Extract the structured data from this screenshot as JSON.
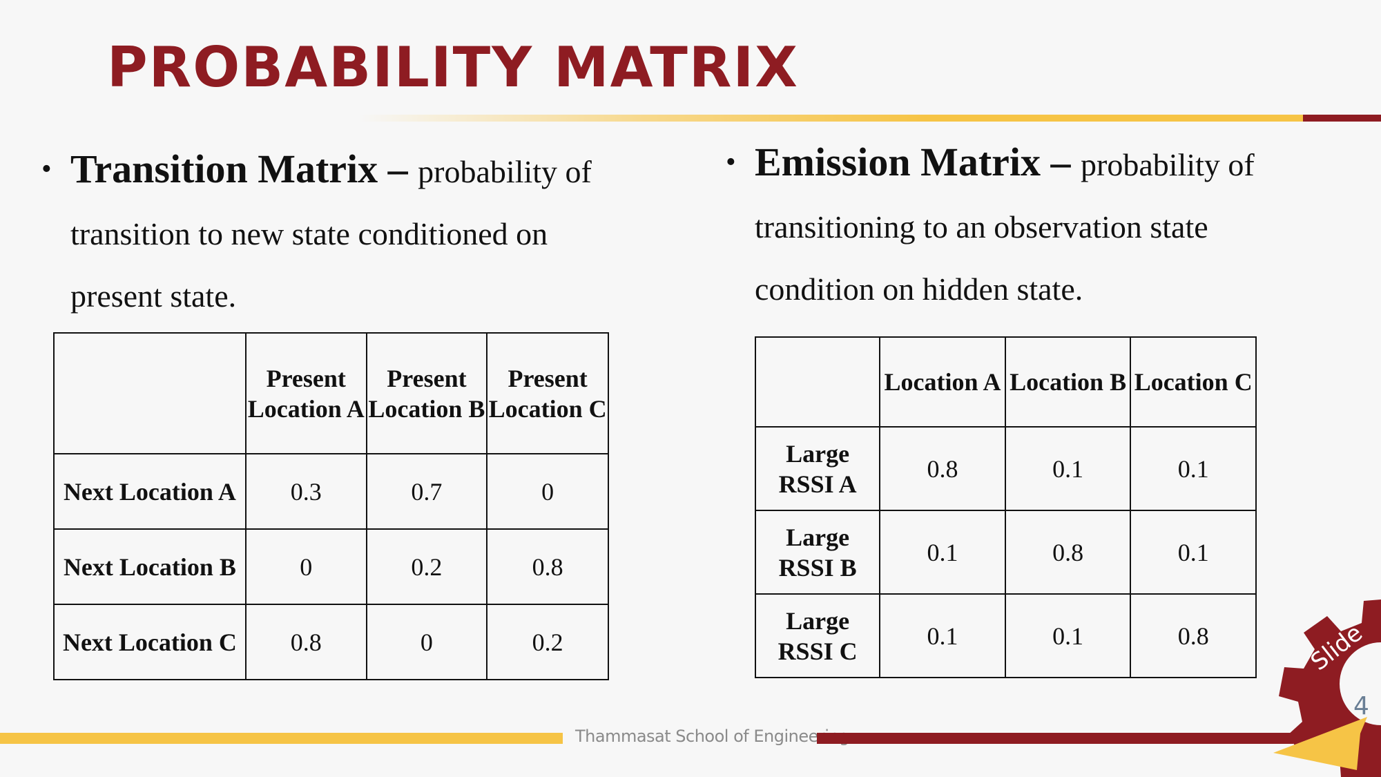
{
  "slide": {
    "title": "PROBABILITY MATRIX",
    "footer": "Thammasat School of Engineering",
    "slide_label": "Slide",
    "slide_number": "4",
    "colors": {
      "accent_red": "#8e1c22",
      "accent_yellow": "#f6c446"
    }
  },
  "left": {
    "bullet_symbol": "•",
    "term": "Transition Matrix",
    "dash": " – ",
    "line1": "probability of",
    "line2": "transition to new state conditioned on",
    "line3": "present state.",
    "table": {
      "headers": [
        "",
        "Present Location A",
        "Present Location B",
        "Present Location C"
      ],
      "rows": [
        {
          "label": "Next Location A",
          "values": [
            "0.3",
            "0.7",
            "0"
          ]
        },
        {
          "label": "Next Location B",
          "values": [
            "0",
            "0.2",
            "0.8"
          ]
        },
        {
          "label": "Next Location C",
          "values": [
            "0.8",
            "0",
            "0.2"
          ]
        }
      ]
    }
  },
  "right": {
    "bullet_symbol": "•",
    "term": "Emission Matrix",
    "dash": " – ",
    "line1": "probability of",
    "line2": "transitioning to an observation state",
    "line3": "condition on hidden state.",
    "table": {
      "headers": [
        "",
        "Location A",
        "Location B",
        "Location C"
      ],
      "rows": [
        {
          "label": "Large RSSI  A",
          "values": [
            "0.8",
            "0.1",
            "0.1"
          ]
        },
        {
          "label": "Large RSSI  B",
          "values": [
            "0.1",
            "0.8",
            "0.1"
          ]
        },
        {
          "label": "Large RSSI  C",
          "values": [
            "0.1",
            "0.1",
            "0.8"
          ]
        }
      ]
    }
  }
}
